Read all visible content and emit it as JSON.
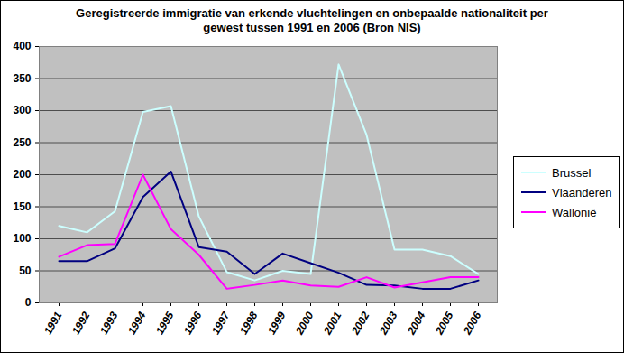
{
  "chart_data": {
    "type": "line",
    "title": "Geregistreerde immigratie van erkende vluchtelingen en onbepaalde nationaliteit per gewest tussen 1991 en 2006 (Bron NIS)",
    "categories": [
      "1991",
      "1992",
      "1993",
      "1994",
      "1995",
      "1996",
      "1997",
      "1998",
      "1999",
      "2000",
      "2001",
      "2002",
      "2003",
      "2004",
      "2005",
      "2006"
    ],
    "series": [
      {
        "name": "Brussel",
        "color": "#ccffff",
        "values": [
          120,
          110,
          143,
          298,
          307,
          135,
          48,
          35,
          50,
          45,
          372,
          262,
          83,
          83,
          73,
          45
        ]
      },
      {
        "name": "Vlaanderen",
        "color": "#000080",
        "values": [
          65,
          65,
          85,
          165,
          205,
          87,
          80,
          45,
          77,
          62,
          47,
          28,
          27,
          22,
          22,
          35
        ]
      },
      {
        "name": "Wallonië",
        "color": "#ff00ff",
        "values": [
          72,
          90,
          92,
          200,
          115,
          75,
          22,
          28,
          35,
          27,
          25,
          40,
          24,
          32,
          40,
          40
        ]
      }
    ],
    "ylim": [
      0,
      400
    ],
    "yticks": [
      0,
      50,
      100,
      150,
      200,
      250,
      300,
      350,
      400
    ],
    "grid": true,
    "legend": "right"
  }
}
